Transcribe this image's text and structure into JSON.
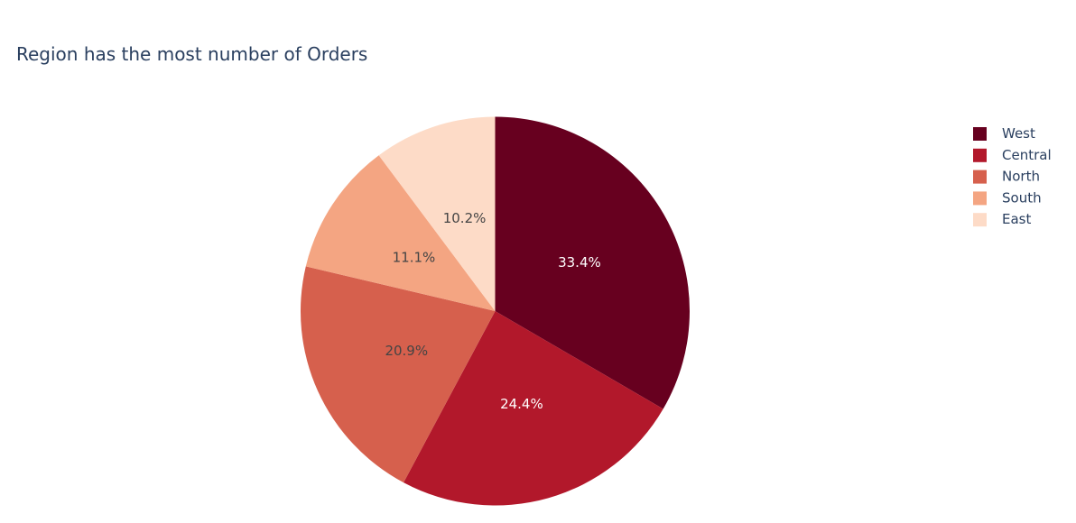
{
  "chart_data": {
    "type": "pie",
    "title": "Region has the most number of Orders",
    "categories": [
      "West",
      "Central",
      "North",
      "South",
      "East"
    ],
    "values": [
      33.4,
      24.4,
      20.9,
      11.1,
      10.2
    ],
    "value_labels": [
      "33.4%",
      "24.4%",
      "20.9%",
      "11.1%",
      "10.2%"
    ],
    "colors": [
      "#67001f",
      "#b2182b",
      "#d6604d",
      "#f4a582",
      "#fddbc7"
    ],
    "label_colors": [
      "#ffffff",
      "#ffffff",
      "#444444",
      "#444444",
      "#444444"
    ],
    "direction": "clockwise",
    "start": "top",
    "legend": {
      "position": "top-right",
      "entries": [
        "West",
        "Central",
        "North",
        "South",
        "East"
      ]
    }
  }
}
